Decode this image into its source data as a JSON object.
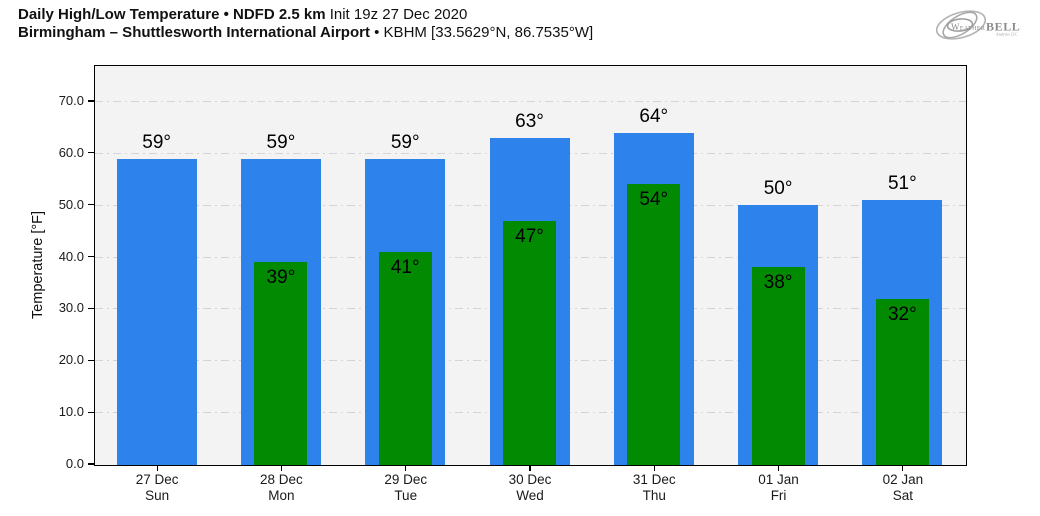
{
  "header": {
    "line1_bold": "Daily High/Low Temperature • NDFD 2.5 km",
    "line1_regular": " Init 19z 27 Dec 2020",
    "line2_bold": "Birmingham – Shuttlesworth International Airport",
    "line2_regular": " • KBHM [33.5629°N, 86.7535°W]"
  },
  "logo": {
    "text_weather": "Weather",
    "text_bell": "BELL",
    "text_sub": "Analytics LLC"
  },
  "chart_data": {
    "type": "bar",
    "title": "Daily High/Low Temperature • NDFD 2.5 km Init 19z 27 Dec 2020",
    "subtitle": "Birmingham – Shuttlesworth International Airport • KBHM [33.5629°N, 86.7535°W]",
    "station": "KBHM",
    "ylabel": "Temperature [°F]",
    "ylim": [
      0,
      76.75
    ],
    "ytick_values": [
      0,
      10,
      20,
      30,
      40,
      50,
      60,
      70
    ],
    "ytick_labels": [
      "0.0",
      "10.0",
      "20.0",
      "30.0",
      "40.0",
      "50.0",
      "60.0",
      "70.0"
    ],
    "categories": [
      {
        "date": "27 Dec",
        "day": "Sun"
      },
      {
        "date": "28 Dec",
        "day": "Mon"
      },
      {
        "date": "29 Dec",
        "day": "Tue"
      },
      {
        "date": "30 Dec",
        "day": "Wed"
      },
      {
        "date": "31 Dec",
        "day": "Thu"
      },
      {
        "date": "01 Jan",
        "day": "Fri"
      },
      {
        "date": "02 Jan",
        "day": "Sat"
      }
    ],
    "series": [
      {
        "name": "High",
        "color": "#2e82ec",
        "values": [
          59,
          59,
          59,
          63,
          64,
          50,
          51
        ]
      },
      {
        "name": "Low",
        "color": "#028a02",
        "values": [
          null,
          39,
          41,
          47,
          54,
          38,
          32
        ]
      }
    ],
    "value_suffix": "°",
    "grid": true,
    "legend": "none",
    "plot_background": "#f3f3f3",
    "gridline_color": "#d4d4d4"
  }
}
